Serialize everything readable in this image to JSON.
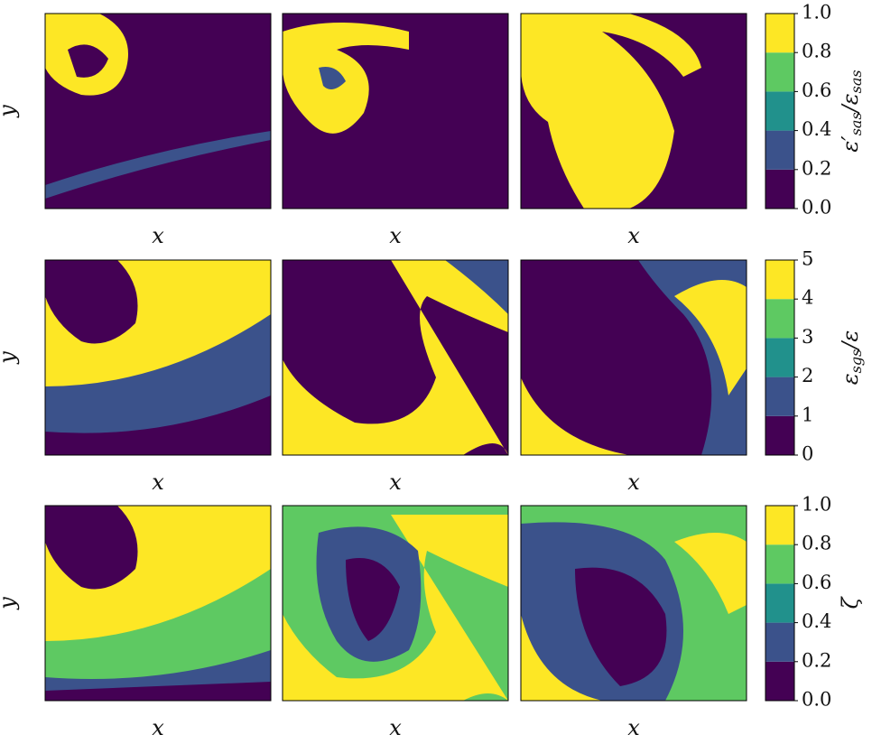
{
  "rows": [
    {
      "ylabel": "y",
      "panels": [
        {
          "xlabel": "x"
        },
        {
          "xlabel": "x"
        },
        {
          "xlabel": "x"
        }
      ],
      "colorbar": {
        "label": [
          {
            "text": "ε′"
          },
          {
            "text": "sas",
            "sub": true
          },
          {
            "text": "/ε"
          },
          {
            "text": "sas",
            "sub": true
          }
        ],
        "lim": [
          0,
          1
        ],
        "ticks": [
          {
            "value": 0,
            "label": "0.0"
          },
          {
            "value": 0.2,
            "label": "0.2"
          },
          {
            "value": 0.4,
            "label": "0.4"
          },
          {
            "value": 0.6,
            "label": "0.6"
          },
          {
            "value": 0.8,
            "label": "0.8"
          },
          {
            "value": 1,
            "label": "1.0"
          }
        ],
        "colors": [
          "#440154",
          "#3b528b",
          "#21918c",
          "#5ec962",
          "#fde725"
        ]
      }
    },
    {
      "ylabel": "y",
      "panels": [
        {
          "xlabel": "x"
        },
        {
          "xlabel": "x"
        },
        {
          "xlabel": "x"
        }
      ],
      "colorbar": {
        "label": [
          {
            "text": "ε"
          },
          {
            "text": "sgs",
            "sub": true
          },
          {
            "text": "/ε"
          }
        ],
        "lim": [
          0,
          5
        ],
        "ticks": [
          0,
          1,
          2,
          3,
          4,
          5
        ],
        "colors": [
          "#440154",
          "#3b528b",
          "#21918c",
          "#5ec962",
          "#fde725"
        ]
      }
    },
    {
      "ylabel": "y",
      "panels": [
        {
          "xlabel": "x"
        },
        {
          "xlabel": "x"
        },
        {
          "xlabel": "x"
        }
      ],
      "colorbar": {
        "label": [
          {
            "text": "ζ"
          }
        ],
        "lim": [
          0,
          1
        ],
        "ticks": [
          {
            "value": 0,
            "label": "0.0"
          },
          {
            "value": 0.2,
            "label": "0.2"
          },
          {
            "value": 0.4,
            "label": "0.4"
          },
          {
            "value": 0.6,
            "label": "0.6"
          },
          {
            "value": 0.8,
            "label": "0.8"
          },
          {
            "value": 1,
            "label": "1.0"
          }
        ],
        "colors": [
          "#440154",
          "#3b528b",
          "#21918c",
          "#5ec962",
          "#fde725"
        ]
      }
    }
  ]
}
